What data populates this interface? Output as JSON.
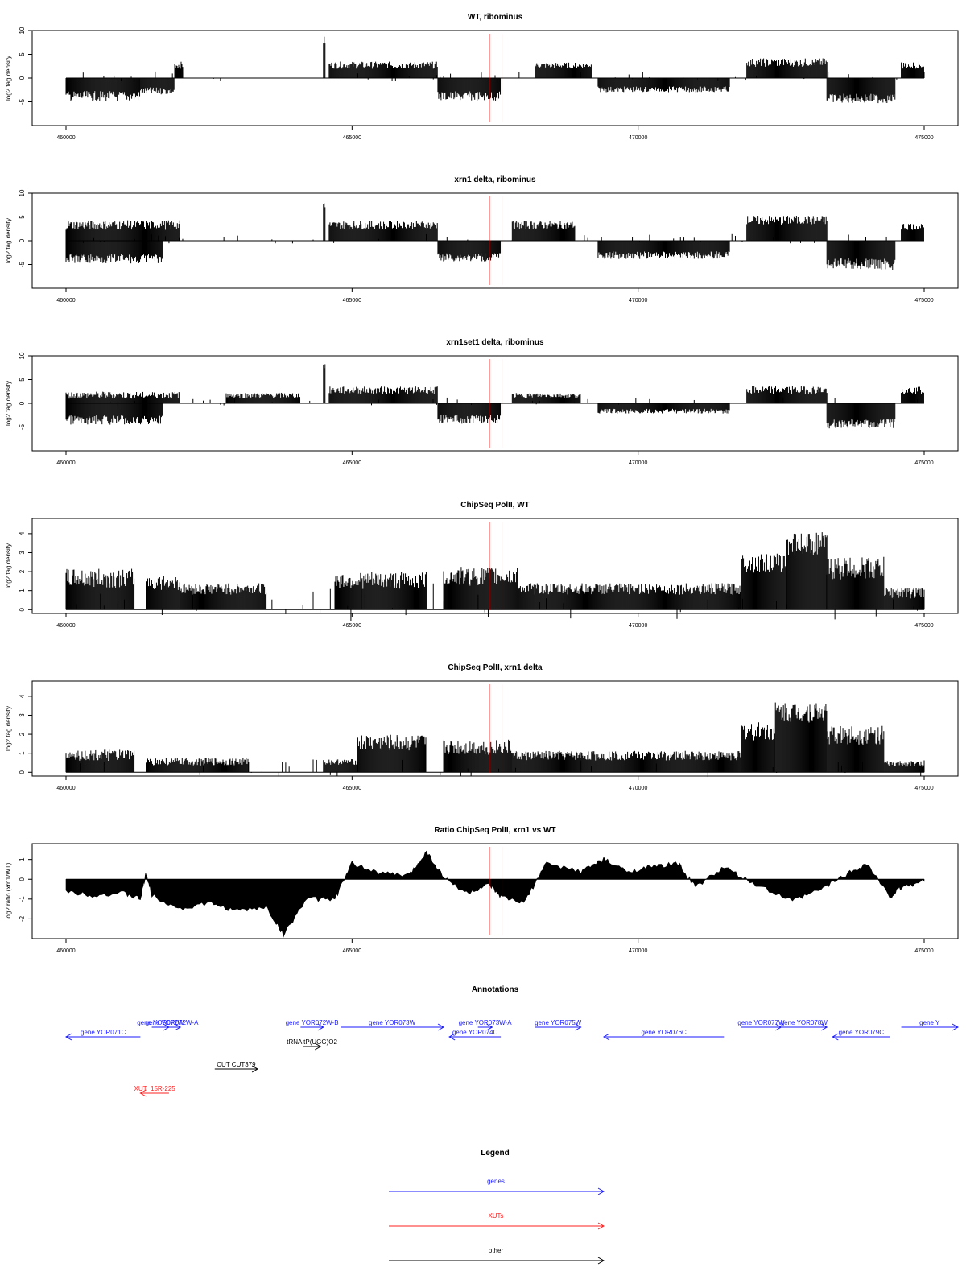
{
  "colors": {
    "gene": "#1a1aff",
    "xut": "#ff2020",
    "other": "#000000",
    "marker": "#ff0000",
    "frame": "#000000"
  },
  "chart_data": [
    {
      "type": "bar",
      "title": "WT, ribominus",
      "ylabel": "log2 tag density",
      "xlim": [
        460000,
        475000
      ],
      "ylim": [
        -10,
        10
      ],
      "yticks": [
        -5,
        0,
        5,
        10
      ],
      "xticks": [
        460000,
        465000,
        470000,
        475000
      ],
      "xtick_labels": [
        "460000",
        "465000",
        "470000",
        "475000"
      ],
      "markers": [
        467400,
        467620
      ],
      "segments": [
        {
          "range": [
            460000,
            461300
          ],
          "level": -3.5,
          "spread": 2.2
        },
        {
          "range": [
            461300,
            461900
          ],
          "level": -2.5,
          "spread": 1.5
        },
        {
          "range": [
            461900,
            462050
          ],
          "level": 2.5,
          "spread": 1.5
        },
        {
          "range": [
            464500,
            464540
          ],
          "level": 7.5,
          "spread": 2
        },
        {
          "range": [
            464600,
            466500
          ],
          "level": 2.5,
          "spread": 1.5
        },
        {
          "range": [
            466500,
            467600
          ],
          "level": -3.5,
          "spread": 2
        },
        {
          "range": [
            468200,
            469200
          ],
          "level": 2.5,
          "spread": 1.2
        },
        {
          "range": [
            469300,
            471600
          ],
          "level": -2.2,
          "spread": 1.2
        },
        {
          "range": [
            471900,
            473300
          ],
          "level": 3,
          "spread": 1.8
        },
        {
          "range": [
            473300,
            474500
          ],
          "level": -4,
          "spread": 2
        },
        {
          "range": [
            474600,
            475000
          ],
          "level": 2.5,
          "spread": 1.5
        }
      ],
      "sparse_level": 1
    },
    {
      "type": "bar",
      "title": "xrn1 delta, ribominus",
      "ylabel": "log2 tag density",
      "xlim": [
        460000,
        475000
      ],
      "ylim": [
        -10,
        10
      ],
      "yticks": [
        -5,
        0,
        5,
        10
      ],
      "xticks": [
        460000,
        465000,
        470000,
        475000
      ],
      "xtick_labels": [
        "460000",
        "465000",
        "470000",
        "475000"
      ],
      "markers": [
        467400,
        467620
      ],
      "segments": [
        {
          "range": [
            460000,
            462000
          ],
          "level": 3,
          "spread": 2
        },
        {
          "range": [
            460000,
            461700
          ],
          "level": -3.5,
          "spread": 2
        },
        {
          "range": [
            464500,
            464540
          ],
          "level": 7.5,
          "spread": 2
        },
        {
          "range": [
            464600,
            466500
          ],
          "level": 3,
          "spread": 1.8
        },
        {
          "range": [
            466500,
            467600
          ],
          "level": -3.2,
          "spread": 1.8
        },
        {
          "range": [
            467800,
            468900
          ],
          "level": 3,
          "spread": 1.8
        },
        {
          "range": [
            469300,
            471600
          ],
          "level": -2.8,
          "spread": 1.6
        },
        {
          "range": [
            471900,
            473300
          ],
          "level": 4,
          "spread": 2
        },
        {
          "range": [
            473300,
            474500
          ],
          "level": -4.5,
          "spread": 2.5
        },
        {
          "range": [
            474600,
            475000
          ],
          "level": 2.8,
          "spread": 1.5
        }
      ],
      "sparse_level": 1
    },
    {
      "type": "bar",
      "title": "xrn1set1 delta, ribominus",
      "ylabel": "log2 tag density",
      "xlim": [
        460000,
        475000
      ],
      "ylim": [
        -10,
        10
      ],
      "yticks": [
        -5,
        0,
        5,
        10
      ],
      "xticks": [
        460000,
        465000,
        470000,
        475000
      ],
      "xtick_labels": [
        "460000",
        "465000",
        "470000",
        "475000"
      ],
      "markers": [
        467400,
        467620
      ],
      "segments": [
        {
          "range": [
            460000,
            462000
          ],
          "level": 1.5,
          "spread": 1.5
        },
        {
          "range": [
            460000,
            461700
          ],
          "level": -3.2,
          "spread": 2
        },
        {
          "range": [
            462800,
            464100
          ],
          "level": 1.5,
          "spread": 1.2
        },
        {
          "range": [
            464500,
            464540
          ],
          "level": 7.5,
          "spread": 2
        },
        {
          "range": [
            464600,
            466500
          ],
          "level": 2.5,
          "spread": 1.6
        },
        {
          "range": [
            466500,
            467600
          ],
          "level": -3,
          "spread": 2
        },
        {
          "range": [
            467800,
            469000
          ],
          "level": 1.5,
          "spread": 1
        },
        {
          "range": [
            469300,
            471600
          ],
          "level": -1.5,
          "spread": 1
        },
        {
          "range": [
            471900,
            473300
          ],
          "level": 2.5,
          "spread": 1.8
        },
        {
          "range": [
            473300,
            474500
          ],
          "level": -4,
          "spread": 2
        },
        {
          "range": [
            474600,
            475000
          ],
          "level": 2.5,
          "spread": 1.5
        }
      ],
      "sparse_level": 1
    },
    {
      "type": "bar",
      "title": "ChipSeq PolII, WT",
      "ylabel": "log2 tag density",
      "xlim": [
        460000,
        475000
      ],
      "ylim": [
        -0.2,
        4.8
      ],
      "yticks": [
        0,
        1,
        2,
        3,
        4
      ],
      "xticks": [
        460000,
        465000,
        470000,
        475000
      ],
      "xtick_labels": [
        "460000",
        "465000",
        "470000",
        "475000"
      ],
      "markers": [
        467400,
        467620
      ],
      "segments": [
        {
          "range": [
            460000,
            461200
          ],
          "level": 1.5,
          "spread": 1
        },
        {
          "range": [
            461400,
            462000
          ],
          "level": 1.3,
          "spread": 0.8
        },
        {
          "range": [
            462000,
            463500
          ],
          "level": 1,
          "spread": 0.6
        },
        {
          "range": [
            464700,
            466300
          ],
          "level": 1.4,
          "spread": 0.9
        },
        {
          "range": [
            466600,
            467900
          ],
          "level": 1.6,
          "spread": 1
        },
        {
          "range": [
            467900,
            471800
          ],
          "level": 1,
          "spread": 0.6
        },
        {
          "range": [
            471800,
            472600
          ],
          "level": 2.3,
          "spread": 1
        },
        {
          "range": [
            472600,
            473300
          ],
          "level": 3.3,
          "spread": 1.2
        },
        {
          "range": [
            473300,
            474300
          ],
          "level": 2,
          "spread": 1.2
        },
        {
          "range": [
            474300,
            475000
          ],
          "level": 0.8,
          "spread": 0.6
        }
      ],
      "sparse_level": 1
    },
    {
      "type": "bar",
      "title": "ChipSeq PolII, xrn1 delta",
      "ylabel": "log2 tag density",
      "xlim": [
        460000,
        475000
      ],
      "ylim": [
        -0.2,
        4.8
      ],
      "yticks": [
        0,
        1,
        2,
        3,
        4
      ],
      "xticks": [
        460000,
        465000,
        470000,
        475000
      ],
      "xtick_labels": [
        "460000",
        "465000",
        "470000",
        "475000"
      ],
      "markers": [
        467400,
        467620
      ],
      "segments": [
        {
          "range": [
            460000,
            461200
          ],
          "level": 0.8,
          "spread": 0.6
        },
        {
          "range": [
            461400,
            463200
          ],
          "level": 0.5,
          "spread": 0.4
        },
        {
          "range": [
            464500,
            465100
          ],
          "level": 0.5,
          "spread": 0.3
        },
        {
          "range": [
            465100,
            466300
          ],
          "level": 1.4,
          "spread": 0.9
        },
        {
          "range": [
            466600,
            467800
          ],
          "level": 1.2,
          "spread": 0.8
        },
        {
          "range": [
            467800,
            471800
          ],
          "level": 0.8,
          "spread": 0.5
        },
        {
          "range": [
            471800,
            472400
          ],
          "level": 2,
          "spread": 1
        },
        {
          "range": [
            472400,
            473300
          ],
          "level": 3,
          "spread": 1.1
        },
        {
          "range": [
            473300,
            474300
          ],
          "level": 1.8,
          "spread": 1
        },
        {
          "range": [
            474300,
            475000
          ],
          "level": 0.4,
          "spread": 0.3
        }
      ],
      "sparse_level": 0.5
    },
    {
      "type": "area",
      "title": "Ratio ChipSeq PolII, xrn1 vs WT",
      "ylabel": "log2 ratio (xrn1/WT)",
      "xlim": [
        460000,
        475000
      ],
      "ylim": [
        -3,
        1.8
      ],
      "yticks": [
        -2,
        -1,
        0,
        1
      ],
      "xticks": [
        460000,
        465000,
        470000,
        475000
      ],
      "xtick_labels": [
        "460000",
        "465000",
        "470000",
        "475000"
      ],
      "markers": [
        467400,
        467620
      ],
      "curve": [
        [
          460000,
          -0.6
        ],
        [
          460500,
          -0.8
        ],
        [
          461000,
          -0.7
        ],
        [
          461300,
          -1.0
        ],
        [
          461400,
          0.3
        ],
        [
          461500,
          -0.8
        ],
        [
          462000,
          -1.5
        ],
        [
          462500,
          -1.2
        ],
        [
          463000,
          -1.6
        ],
        [
          463500,
          -1.4
        ],
        [
          463800,
          -2.8
        ],
        [
          464200,
          -1.0
        ],
        [
          464700,
          -1.0
        ],
        [
          465000,
          0.8
        ],
        [
          465500,
          0.3
        ],
        [
          466000,
          0.2
        ],
        [
          466300,
          1.4
        ],
        [
          466600,
          0.1
        ],
        [
          467000,
          -0.7
        ],
        [
          467400,
          -0.3
        ],
        [
          467600,
          -0.9
        ],
        [
          468000,
          -1.2
        ],
        [
          468400,
          0.8
        ],
        [
          469000,
          0.4
        ],
        [
          469400,
          1.0
        ],
        [
          469800,
          0.4
        ],
        [
          470200,
          0.6
        ],
        [
          470700,
          0.8
        ],
        [
          471000,
          -0.4
        ],
        [
          471500,
          0.6
        ],
        [
          472000,
          -0.2
        ],
        [
          472700,
          -1.1
        ],
        [
          473200,
          -0.5
        ],
        [
          473600,
          0.2
        ],
        [
          474000,
          0.8
        ],
        [
          474400,
          -0.9
        ],
        [
          474600,
          -0.4
        ],
        [
          475000,
          -0.1
        ]
      ]
    }
  ],
  "annotations": {
    "title": "Annotations",
    "tracks": [
      {
        "label": "gene YOR071C",
        "type": "gene",
        "start": 460000,
        "end": 461300,
        "strand": "-",
        "row": 1
      },
      {
        "label": "gene YOR072W",
        "type": "gene",
        "start": 461500,
        "end": 461800,
        "strand": "+",
        "row": 0
      },
      {
        "label": "gene YOR072W-A",
        "type": "gene",
        "start": 461700,
        "end": 462000,
        "strand": "+",
        "row": 0
      },
      {
        "label": "gene YOR072W-B",
        "type": "gene",
        "start": 464100,
        "end": 464500,
        "strand": "+",
        "row": 0
      },
      {
        "label": "tRNA tP(UGG)O2",
        "type": "other",
        "start": 464150,
        "end": 464450,
        "strand": "+",
        "row": 2
      },
      {
        "label": "gene YOR073W",
        "type": "gene",
        "start": 464800,
        "end": 466600,
        "strand": "+",
        "row": 0
      },
      {
        "label": "gene YOR073W-A",
        "type": "gene",
        "start": 467200,
        "end": 467450,
        "strand": "+",
        "row": 0
      },
      {
        "label": "gene YOR074C",
        "type": "gene",
        "start": 466700,
        "end": 467600,
        "strand": "-",
        "row": 1
      },
      {
        "label": "gene YOR075W",
        "type": "gene",
        "start": 468200,
        "end": 469000,
        "strand": "+",
        "row": 0
      },
      {
        "label": "gene YOR076C",
        "type": "gene",
        "start": 469400,
        "end": 471500,
        "strand": "-",
        "row": 1
      },
      {
        "label": "gene YOR077W",
        "type": "gene",
        "start": 471800,
        "end": 472500,
        "strand": "+",
        "row": 0
      },
      {
        "label": "gene YOR078W",
        "type": "gene",
        "start": 472500,
        "end": 473300,
        "strand": "+",
        "row": 0
      },
      {
        "label": "gene YOR079C",
        "type": "gene",
        "start": 473400,
        "end": 474400,
        "strand": "-",
        "row": 1
      },
      {
        "label": "gene Y",
        "type": "gene",
        "start": 474600,
        "end": 475800,
        "strand": "+",
        "row": 0
      },
      {
        "label": "CUT CUT379",
        "type": "other",
        "start": 462600,
        "end": 463350,
        "strand": "+",
        "row": 3
      },
      {
        "label": "XUT_15R-225",
        "type": "xut",
        "start": 461300,
        "end": 461800,
        "strand": "-",
        "row": 4
      }
    ]
  },
  "legend": {
    "title": "Legend",
    "items": [
      {
        "label": "genes",
        "type": "gene"
      },
      {
        "label": "XUTs",
        "type": "xut"
      },
      {
        "label": "other",
        "type": "other"
      }
    ]
  }
}
